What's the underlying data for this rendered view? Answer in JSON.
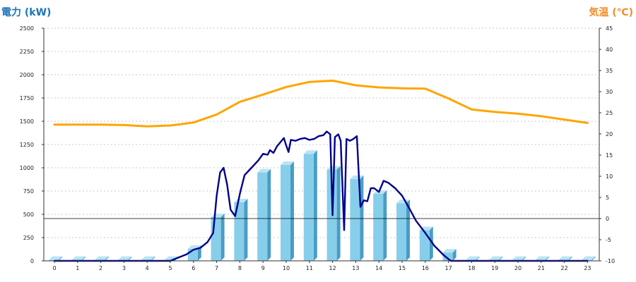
{
  "chart_data": {
    "type": "bar",
    "left_axis_title": "電力 (kW)",
    "right_axis_title": "気温 (℃)",
    "x": [
      0,
      1,
      2,
      3,
      4,
      5,
      6,
      7,
      8,
      9,
      10,
      11,
      12,
      13,
      14,
      15,
      16,
      17,
      18,
      19,
      20,
      21,
      22,
      23
    ],
    "x_tick_labels": [
      "0",
      "1",
      "2",
      "3",
      "4",
      "5",
      "6",
      "7",
      "8",
      "9",
      "10",
      "11",
      "12",
      "13",
      "14",
      "15",
      "16",
      "17",
      "18",
      "19",
      "20",
      "21",
      "22",
      "23"
    ],
    "ylim_left": [
      0,
      2500
    ],
    "left_ticks": [
      0,
      250,
      500,
      750,
      1000,
      1250,
      1500,
      1750,
      2000,
      2250,
      2500
    ],
    "ylim_right": [
      -10,
      45
    ],
    "right_ticks": [
      -10,
      -5,
      0,
      5,
      10,
      15,
      20,
      25,
      30,
      35,
      40,
      45
    ],
    "grid": "horizontal-dashed",
    "series": [
      {
        "kind": "bar-3d",
        "axis": "left",
        "color": "#87ceeb",
        "side_color": "#4a9cc4",
        "top_color": "#b9e4f5",
        "values": [
          10,
          10,
          10,
          10,
          10,
          10,
          130,
          470,
          630,
          950,
          1030,
          1150,
          980,
          880,
          720,
          620,
          330,
          90,
          10,
          10,
          10,
          10,
          10,
          10
        ]
      },
      {
        "kind": "line",
        "axis": "left",
        "color": "#00008b",
        "points": [
          [
            0,
            0
          ],
          [
            1,
            0
          ],
          [
            2,
            0
          ],
          [
            3,
            0
          ],
          [
            4,
            0
          ],
          [
            5,
            0
          ],
          [
            5.3,
            30
          ],
          [
            5.7,
            70
          ],
          [
            6,
            120
          ],
          [
            6.3,
            140
          ],
          [
            6.6,
            200
          ],
          [
            6.85,
            300
          ],
          [
            7.0,
            700
          ],
          [
            7.15,
            950
          ],
          [
            7.3,
            1000
          ],
          [
            7.45,
            820
          ],
          [
            7.6,
            550
          ],
          [
            7.8,
            480
          ],
          [
            8.0,
            720
          ],
          [
            8.2,
            920
          ],
          [
            8.5,
            1000
          ],
          [
            8.8,
            1080
          ],
          [
            9.0,
            1150
          ],
          [
            9.2,
            1140
          ],
          [
            9.3,
            1190
          ],
          [
            9.45,
            1160
          ],
          [
            9.6,
            1230
          ],
          [
            9.8,
            1290
          ],
          [
            9.9,
            1320
          ],
          [
            10.0,
            1240
          ],
          [
            10.1,
            1170
          ],
          [
            10.2,
            1300
          ],
          [
            10.4,
            1290
          ],
          [
            10.6,
            1310
          ],
          [
            10.8,
            1320
          ],
          [
            11.0,
            1300
          ],
          [
            11.2,
            1310
          ],
          [
            11.4,
            1340
          ],
          [
            11.6,
            1350
          ],
          [
            11.75,
            1390
          ],
          [
            11.9,
            1360
          ],
          [
            12.0,
            490
          ],
          [
            12.1,
            1330
          ],
          [
            12.25,
            1360
          ],
          [
            12.35,
            1290
          ],
          [
            12.5,
            330
          ],
          [
            12.6,
            1310
          ],
          [
            12.75,
            1290
          ],
          [
            12.9,
            1310
          ],
          [
            13.05,
            1340
          ],
          [
            13.2,
            580
          ],
          [
            13.35,
            650
          ],
          [
            13.5,
            640
          ],
          [
            13.65,
            780
          ],
          [
            13.8,
            780
          ],
          [
            14.0,
            740
          ],
          [
            14.2,
            860
          ],
          [
            14.4,
            840
          ],
          [
            14.7,
            780
          ],
          [
            15.0,
            700
          ],
          [
            15.3,
            570
          ],
          [
            15.6,
            430
          ],
          [
            16.0,
            300
          ],
          [
            16.4,
            160
          ],
          [
            16.8,
            60
          ],
          [
            17.0,
            20
          ],
          [
            17.1,
            0
          ],
          [
            18,
            0
          ],
          [
            19,
            0
          ],
          [
            20,
            0
          ],
          [
            21,
            0
          ],
          [
            22,
            0
          ],
          [
            23,
            0
          ]
        ]
      },
      {
        "kind": "line",
        "axis": "right",
        "color": "#ffa500",
        "values": [
          22.2,
          22.2,
          22.2,
          22.1,
          21.8,
          22.0,
          22.7,
          24.6,
          27.6,
          29.3,
          31.1,
          32.3,
          32.6,
          31.5,
          31.0,
          30.8,
          30.7,
          28.4,
          25.8,
          25.2,
          24.8,
          24.2,
          23.4,
          22.6
        ]
      }
    ],
    "reference_lines": [
      {
        "axis": "right",
        "value": 0,
        "color": "#000000"
      }
    ]
  }
}
